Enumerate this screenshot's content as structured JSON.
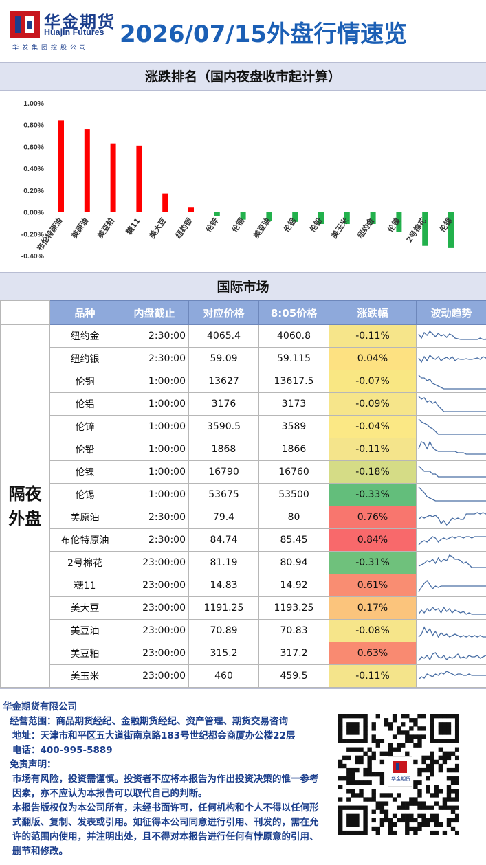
{
  "header": {
    "logo_cn": "华金期货",
    "logo_en": "Huajin Futures",
    "logo_sub": "华发集团控股公司",
    "title": "2026/07/15外盘行情速览"
  },
  "ranking": {
    "title": "涨跌排名（国内夜盘收市起计算）"
  },
  "chart_data": {
    "type": "bar",
    "categories": [
      "布伦特原油",
      "美原油",
      "美豆粕",
      "糖11",
      "美大豆",
      "纽约银",
      "伦锌",
      "伦铜",
      "美豆油",
      "伦铝",
      "伦铅",
      "美玉米",
      "纽约金",
      "伦镍",
      "2号棉花",
      "伦锡"
    ],
    "values": [
      0.84,
      0.76,
      0.63,
      0.61,
      0.17,
      0.04,
      -0.04,
      -0.07,
      -0.08,
      -0.09,
      -0.11,
      -0.11,
      -0.11,
      -0.18,
      -0.31,
      -0.33
    ],
    "ylim": [
      -0.4,
      1.0
    ],
    "yticks": [
      "1.00%",
      "0.80%",
      "0.60%",
      "0.40%",
      "0.20%",
      "0.00%",
      "-0.20%",
      "-0.40%"
    ],
    "colors": {
      "up": "#ff0000",
      "down": "#22b14c"
    },
    "grid": false
  },
  "intl": {
    "title": "国际市场",
    "columns": [
      "品种",
      "内盘截止",
      "对应价格",
      "8:05价格",
      "涨跌幅",
      "波动趋势"
    ],
    "group_label": "隔夜外盘",
    "rows": [
      {
        "name": "纽约金",
        "cutoff": "2:30:00",
        "price": "4065.4",
        "price805": "4060.8",
        "change": "-0.11%",
        "color": "#f6e58a"
      },
      {
        "name": "纽约银",
        "cutoff": "2:30:00",
        "price": "59.09",
        "price805": "59.115",
        "change": "0.04%",
        "color": "#fde181"
      },
      {
        "name": "伦铜",
        "cutoff": "1:00:00",
        "price": "13627",
        "price805": "13617.5",
        "change": "-0.07%",
        "color": "#f9e783"
      },
      {
        "name": "伦铝",
        "cutoff": "1:00:00",
        "price": "3176",
        "price805": "3173",
        "change": "-0.09%",
        "color": "#f6e58a"
      },
      {
        "name": "伦锌",
        "cutoff": "1:00:00",
        "price": "3590.5",
        "price805": "3589",
        "change": "-0.04%",
        "color": "#fbe885"
      },
      {
        "name": "伦铅",
        "cutoff": "1:00:00",
        "price": "1868",
        "price805": "1866",
        "change": "-0.11%",
        "color": "#f4e48b"
      },
      {
        "name": "伦镍",
        "cutoff": "1:00:00",
        "price": "16790",
        "price805": "16760",
        "change": "-0.18%",
        "color": "#d5dc86"
      },
      {
        "name": "伦锡",
        "cutoff": "1:00:00",
        "price": "53675",
        "price805": "53500",
        "change": "-0.33%",
        "color": "#63be7b"
      },
      {
        "name": "美原油",
        "cutoff": "2:30:00",
        "price": "79.4",
        "price805": "80",
        "change": "0.76%",
        "color": "#f8766e"
      },
      {
        "name": "布伦特原油",
        "cutoff": "2:30:00",
        "price": "84.74",
        "price805": "85.45",
        "change": "0.84%",
        "color": "#f8696b"
      },
      {
        "name": "2号棉花",
        "cutoff": "23:00:00",
        "price": "81.19",
        "price805": "80.94",
        "change": "-0.31%",
        "color": "#6fc17c"
      },
      {
        "name": "糖11",
        "cutoff": "23:00:00",
        "price": "14.83",
        "price805": "14.92",
        "change": "0.61%",
        "color": "#f98d72"
      },
      {
        "name": "美大豆",
        "cutoff": "23:00:00",
        "price": "1191.25",
        "price805": "1193.25",
        "change": "0.17%",
        "color": "#fbc47c"
      },
      {
        "name": "美豆油",
        "cutoff": "23:00:00",
        "price": "70.89",
        "price805": "70.83",
        "change": "-0.08%",
        "color": "#f6e58a"
      },
      {
        "name": "美豆粕",
        "cutoff": "23:00:00",
        "price": "315.2",
        "price805": "317.2",
        "change": "0.63%",
        "color": "#f98a71"
      },
      {
        "name": "美玉米",
        "cutoff": "23:00:00",
        "price": "460",
        "price805": "459.5",
        "change": "-0.11%",
        "color": "#f4e48b"
      }
    ]
  },
  "footer": {
    "company": "华金期货有限公司",
    "scope": "经营范围：商品期货经纪、金融期货经纪、资产管理、期货交易咨询",
    "address": "地址：天津市和平区五大道街南京路183号世纪都会商厦办公楼22层",
    "phone": "电话：400-995-5889",
    "disclaimer_title": "免责声明：",
    "disclaimer_1": "市场有风险，投资需谨慎。投资者不应将本报告为作出投资决策的惟一参考因素，亦不应认为本报告可以取代自己的判断。",
    "disclaimer_2": "本报告版权仅为本公司所有，未经书面许可，任何机构和个人不得以任何形式翻版、复制、发表或引用。如征得本公司同意进行引用、刊发的，需在允许的范围内使用，并注明出处，且不得对本报告进行任何有悖原意的引用、删节和修改。",
    "qr_label": "华金期货"
  }
}
